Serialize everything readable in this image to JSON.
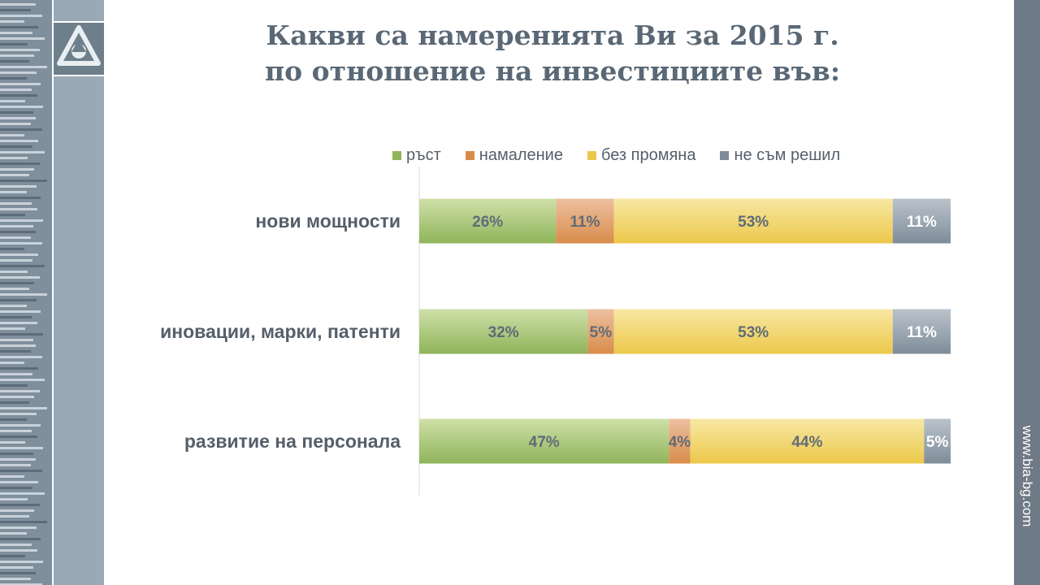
{
  "title": {
    "line1": "Какви са намеренията Ви за 2015 г.",
    "line2": "по отношение на инвестициите във:"
  },
  "footer": {
    "url": "www.bia-bg.com"
  },
  "chart_data": {
    "type": "bar",
    "orientation": "horizontal",
    "stacking": "percent",
    "categories": [
      "нови мощности",
      "иновации, марки, патенти",
      "развитие на персонала"
    ],
    "series": [
      {
        "name": "ръст",
        "values": [
          26,
          32,
          47
        ],
        "labels": [
          "26%",
          "32%",
          "47%"
        ],
        "color": "#8fb45a"
      },
      {
        "name": "намаление",
        "values": [
          11,
          5,
          4
        ],
        "labels": [
          "11%",
          "5%",
          "4%"
        ],
        "color": "#d98c4a"
      },
      {
        "name": "без промяна",
        "values": [
          53,
          53,
          44
        ],
        "labels": [
          "53%",
          "53%",
          "44%"
        ],
        "color": "#ecc84a"
      },
      {
        "name": "не съм решил",
        "values": [
          11,
          11,
          5
        ],
        "labels": [
          "11%",
          "11%",
          "5%"
        ],
        "color": "#7f8c98"
      }
    ],
    "legend_position": "top",
    "grid": false
  }
}
